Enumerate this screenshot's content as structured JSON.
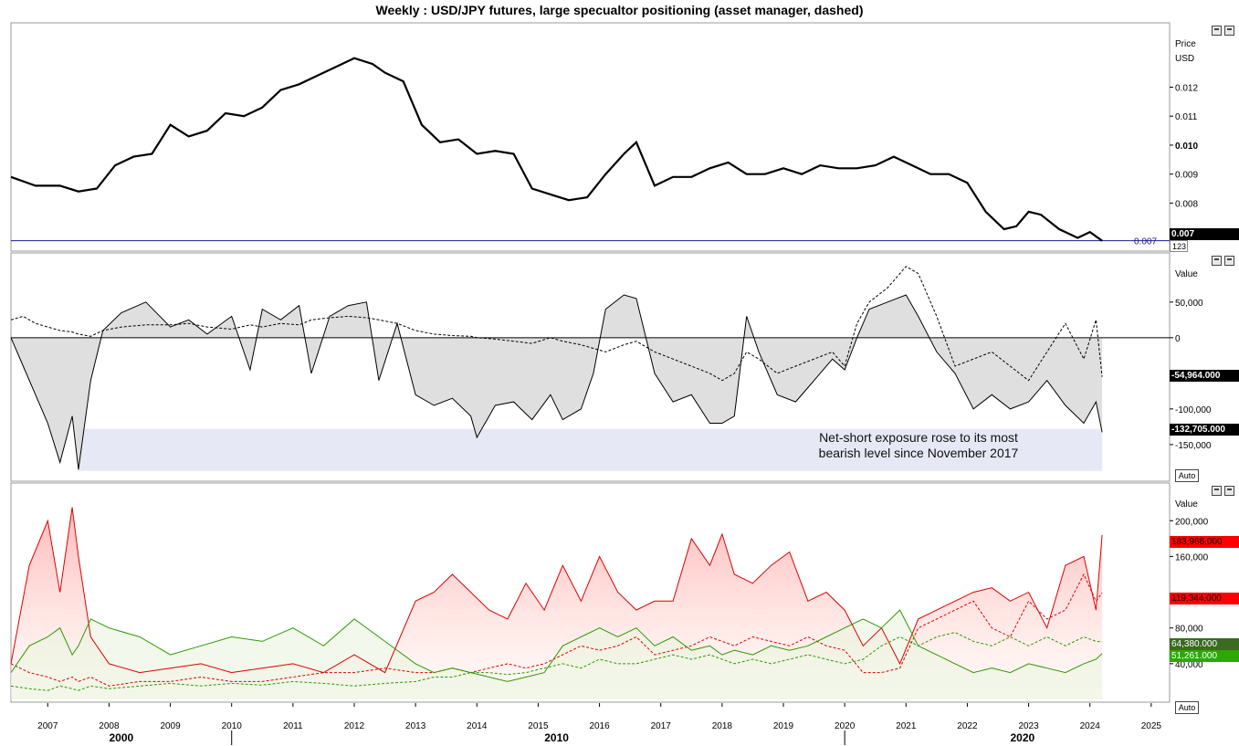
{
  "title": "Weekly : USD/JPY futures, large specualtor positioning (asset manager, dashed)",
  "panes": {
    "price": {
      "axis_label_1": "Price",
      "axis_label_2": "USD"
    },
    "net": {
      "axis_label": "Value",
      "auto_label": "Auto"
    },
    "gross": {
      "axis_label": "Value",
      "auto_label": "Auto"
    }
  },
  "annotation": {
    "line1": "Net-short exposure rose to its most",
    "line2": "bearish level since November 2017"
  },
  "badges": {
    "price_last": "0.007",
    "price_counter": "123",
    "price_hline": "0.007",
    "net_asset_manager": "-54,964.000",
    "net_large_spec": "-132,705.000",
    "gross_1": "183,966.000",
    "gross_2": "119,344.000",
    "gross_3": "64,380.000",
    "gross_4": "51,261.000"
  },
  "colors": {
    "price": "#000000",
    "net_line": "#000000",
    "net_fill": "#d9d9d9",
    "short_red": "#e00000",
    "long_green": "#2e9900",
    "annotation_box": "#e6e9f5",
    "hline": "#1a1a8c",
    "badge_black": "#000000",
    "badge_red": "#ff0000",
    "badge_dark_green": "#3a6b1f",
    "badge_green": "#2ea800"
  },
  "chart_data": [
    {
      "type": "line",
      "title": "Weekly : USD/JPY futures, large specualtor positioning (asset manager, dashed)",
      "ylabel": "Price USD",
      "ylim": [
        0.0065,
        0.014
      ],
      "yticks": [
        "0.007",
        "0.008",
        "0.009",
        "0.010",
        "0.011",
        "0.012"
      ],
      "x": [
        2006.4,
        2006.8,
        2007.2,
        2007.5,
        2007.8,
        2008.1,
        2008.4,
        2008.7,
        2009.0,
        2009.3,
        2009.6,
        2009.9,
        2010.2,
        2010.5,
        2010.8,
        2011.1,
        2011.4,
        2011.7,
        2012.0,
        2012.3,
        2012.5,
        2012.8,
        2013.1,
        2013.4,
        2013.7,
        2014.0,
        2014.3,
        2014.6,
        2014.9,
        2015.2,
        2015.5,
        2015.8,
        2016.1,
        2016.4,
        2016.6,
        2016.9,
        2017.2,
        2017.5,
        2017.8,
        2018.1,
        2018.4,
        2018.7,
        2019.0,
        2019.3,
        2019.6,
        2019.9,
        2020.2,
        2020.5,
        2020.8,
        2021.1,
        2021.4,
        2021.7,
        2022.0,
        2022.3,
        2022.6,
        2022.8,
        2023.0,
        2023.2,
        2023.5,
        2023.8,
        2024.0,
        2024.2
      ],
      "series": [
        {
          "values": [
            0.0089,
            0.0086,
            0.0086,
            0.0084,
            0.0085,
            0.0093,
            0.0096,
            0.0097,
            0.0107,
            0.0103,
            0.0105,
            0.0111,
            0.011,
            0.0113,
            0.0119,
            0.0121,
            0.0124,
            0.0127,
            0.013,
            0.0128,
            0.0125,
            0.0122,
            0.0107,
            0.0101,
            0.0102,
            0.0097,
            0.0098,
            0.0097,
            0.0085,
            0.0083,
            0.0081,
            0.0082,
            0.009,
            0.0097,
            0.0101,
            0.0086,
            0.0089,
            0.0089,
            0.0092,
            0.0094,
            0.009,
            0.009,
            0.0092,
            0.009,
            0.0093,
            0.0092,
            0.0092,
            0.0093,
            0.0096,
            0.0093,
            0.009,
            0.009,
            0.0087,
            0.0077,
            0.0071,
            0.0072,
            0.0077,
            0.0076,
            0.0071,
            0.0068,
            0.007,
            0.0067
          ]
        }
      ],
      "hline": 0.0067
    },
    {
      "type": "area",
      "ylabel": "Value",
      "ylim": [
        -195000,
        110000
      ],
      "yticks": [
        "50,000",
        "0",
        "-100,000",
        "-150,000"
      ],
      "x": [
        2006.4,
        2006.6,
        2006.8,
        2007.0,
        2007.2,
        2007.4,
        2007.5,
        2007.7,
        2007.9,
        2008.2,
        2008.6,
        2009.0,
        2009.3,
        2009.6,
        2010.0,
        2010.3,
        2010.5,
        2010.8,
        2011.1,
        2011.3,
        2011.6,
        2011.9,
        2012.2,
        2012.4,
        2012.7,
        2013.0,
        2013.3,
        2013.6,
        2013.9,
        2014.0,
        2014.3,
        2014.6,
        2014.9,
        2015.2,
        2015.4,
        2015.7,
        2015.9,
        2016.1,
        2016.4,
        2016.6,
        2016.9,
        2017.2,
        2017.5,
        2017.8,
        2018.0,
        2018.2,
        2018.4,
        2018.6,
        2018.9,
        2019.2,
        2019.5,
        2019.8,
        2020.0,
        2020.2,
        2020.4,
        2020.7,
        2021.0,
        2021.2,
        2021.5,
        2021.8,
        2022.1,
        2022.4,
        2022.7,
        2023.0,
        2023.3,
        2023.6,
        2023.9,
        2024.1,
        2024.2
      ],
      "series": [
        {
          "name": "",
          "values": [
            0,
            -40000,
            -80000,
            -120000,
            -175000,
            -110000,
            -185000,
            -60000,
            10000,
            35000,
            50000,
            15000,
            25000,
            5000,
            30000,
            -45000,
            40000,
            25000,
            45000,
            -50000,
            30000,
            45000,
            50000,
            -60000,
            20000,
            -80000,
            -95000,
            -85000,
            -110000,
            -140000,
            -95000,
            -90000,
            -115000,
            -80000,
            -115000,
            -100000,
            -50000,
            40000,
            60000,
            55000,
            -50000,
            -90000,
            -80000,
            -120000,
            -120000,
            -110000,
            30000,
            -20000,
            -80000,
            -90000,
            -60000,
            -30000,
            -45000,
            0,
            40000,
            50000,
            60000,
            30000,
            -20000,
            -50000,
            -100000,
            -80000,
            -100000,
            -90000,
            -60000,
            -95000,
            -120000,
            -90000,
            -132705
          ]
        },
        {
          "name": "",
          "values": [
            25000,
            30000,
            20000,
            15000,
            10000,
            8000,
            5000,
            2000,
            10000,
            15000,
            18000,
            18000,
            20000,
            15000,
            12000,
            18000,
            15000,
            20000,
            18000,
            25000,
            28000,
            30000,
            28000,
            25000,
            20000,
            10000,
            5000,
            3000,
            2000,
            0,
            -2000,
            -5000,
            -8000,
            0,
            -5000,
            -10000,
            -15000,
            -20000,
            -10000,
            -5000,
            -20000,
            -30000,
            -40000,
            -50000,
            -60000,
            -50000,
            -20000,
            -30000,
            -50000,
            -40000,
            -30000,
            -20000,
            -40000,
            20000,
            50000,
            70000,
            100000,
            90000,
            30000,
            -40000,
            -30000,
            -20000,
            -40000,
            -60000,
            -20000,
            20000,
            -30000,
            25000,
            -54964
          ]
        }
      ]
    },
    {
      "type": "area",
      "ylabel": "Value",
      "ylim": [
        0,
        235000
      ],
      "yticks": [
        "200,000",
        "160,000",
        "80,000",
        "40,000"
      ],
      "x": [
        2006.4,
        2006.7,
        2007.0,
        2007.2,
        2007.4,
        2007.5,
        2007.7,
        2008.0,
        2008.5,
        2009.0,
        2009.5,
        2010.0,
        2010.5,
        2011.0,
        2011.5,
        2012.0,
        2012.5,
        2013.0,
        2013.3,
        2013.6,
        2013.9,
        2014.2,
        2014.5,
        2014.8,
        2015.1,
        2015.4,
        2015.7,
        2016.0,
        2016.3,
        2016.6,
        2016.9,
        2017.2,
        2017.5,
        2017.8,
        2018.0,
        2018.2,
        2018.5,
        2018.8,
        2019.1,
        2019.4,
        2019.7,
        2020.0,
        2020.3,
        2020.6,
        2020.9,
        2021.2,
        2021.5,
        2021.8,
        2022.1,
        2022.4,
        2022.7,
        2023.0,
        2023.3,
        2023.6,
        2023.9,
        2024.1,
        2024.2
      ],
      "series": [
        {
          "name": "",
          "values": [
            40000,
            150000,
            200000,
            120000,
            215000,
            160000,
            70000,
            40000,
            30000,
            35000,
            40000,
            30000,
            35000,
            40000,
            30000,
            50000,
            30000,
            110000,
            120000,
            140000,
            120000,
            100000,
            90000,
            130000,
            100000,
            150000,
            110000,
            160000,
            120000,
            100000,
            110000,
            110000,
            180000,
            150000,
            185000,
            140000,
            130000,
            150000,
            165000,
            110000,
            120000,
            100000,
            60000,
            80000,
            40000,
            90000,
            100000,
            110000,
            120000,
            125000,
            110000,
            120000,
            80000,
            150000,
            160000,
            100000,
            183966
          ]
        },
        {
          "name": "",
          "values": [
            40000,
            30000,
            25000,
            20000,
            25000,
            20000,
            25000,
            15000,
            20000,
            20000,
            25000,
            20000,
            20000,
            25000,
            30000,
            30000,
            35000,
            30000,
            30000,
            35000,
            30000,
            35000,
            40000,
            35000,
            40000,
            50000,
            60000,
            55000,
            60000,
            70000,
            50000,
            55000,
            60000,
            70000,
            65000,
            60000,
            70000,
            65000,
            60000,
            70000,
            60000,
            55000,
            30000,
            30000,
            35000,
            80000,
            90000,
            100000,
            110000,
            80000,
            70000,
            110000,
            90000,
            100000,
            140000,
            110000,
            119344
          ]
        },
        {
          "name": "",
          "values": [
            30000,
            60000,
            70000,
            80000,
            50000,
            60000,
            90000,
            80000,
            70000,
            50000,
            60000,
            70000,
            65000,
            80000,
            60000,
            90000,
            65000,
            40000,
            30000,
            35000,
            30000,
            25000,
            20000,
            25000,
            30000,
            60000,
            70000,
            80000,
            70000,
            80000,
            60000,
            70000,
            55000,
            60000,
            50000,
            55000,
            50000,
            60000,
            55000,
            60000,
            70000,
            80000,
            90000,
            80000,
            100000,
            60000,
            50000,
            40000,
            30000,
            35000,
            30000,
            40000,
            35000,
            30000,
            40000,
            45000,
            51261
          ]
        },
        {
          "name": "",
          "values": [
            15000,
            12000,
            10000,
            15000,
            12000,
            10000,
            15000,
            12000,
            15000,
            18000,
            15000,
            18000,
            16000,
            20000,
            18000,
            15000,
            18000,
            20000,
            25000,
            25000,
            30000,
            30000,
            28000,
            30000,
            35000,
            40000,
            35000,
            45000,
            40000,
            40000,
            45000,
            50000,
            45000,
            50000,
            45000,
            40000,
            45000,
            40000,
            45000,
            50000,
            45000,
            40000,
            45000,
            60000,
            70000,
            60000,
            70000,
            75000,
            65000,
            60000,
            70000,
            60000,
            70000,
            60000,
            70000,
            65000,
            64380
          ]
        }
      ]
    }
  ],
  "x_axis": {
    "years": [
      "2007",
      "2008",
      "2009",
      "2010",
      "2011",
      "2012",
      "2013",
      "2014",
      "2015",
      "2016",
      "2017",
      "2018",
      "2019",
      "2020",
      "2021",
      "2022",
      "2023",
      "2024",
      "2025"
    ],
    "decades": [
      "2000",
      "2010",
      "2020"
    ]
  }
}
